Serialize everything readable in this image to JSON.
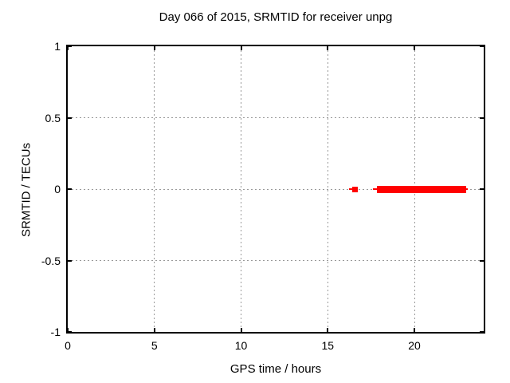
{
  "chart_data": {
    "type": "scatter",
    "title": "Day 066 of 2015, SRMTID for receiver unpg",
    "xlabel": "GPS time / hours",
    "ylabel": "SRMTID / TECUs",
    "xlim": [
      0,
      24
    ],
    "ylim": [
      -1,
      1
    ],
    "xticks": {
      "values": [
        0,
        5,
        10,
        15,
        20
      ],
      "labels": [
        "0",
        "5",
        "10",
        "15",
        "20"
      ]
    },
    "yticks": {
      "values": [
        1,
        0.5,
        0,
        -0.5,
        -1
      ],
      "labels": [
        "1",
        "0.5",
        "0",
        "-0.5",
        "-1"
      ]
    },
    "grid": true,
    "grid_color": "#999999",
    "border_color": "#000000",
    "background_color": "#ffffff",
    "marker_color": "#ff0000",
    "legend": "none",
    "series": [
      {
        "name": "SRMTID",
        "y_value": 0,
        "description": "All points lie on y = 0 TECUs; one isolated point near 16.5 h and a dense continuous run from about 17.8 h to 23.0 h",
        "coverage_hours": [
          [
            16.2,
            16.7
          ],
          [
            17.6,
            23.1
          ]
        ],
        "segments": [
          {
            "kind": "thin",
            "x1": 16.24,
            "x2": 16.4,
            "y": 0,
            "size": 2
          },
          {
            "kind": "point",
            "x1": 16.4,
            "x2": 16.72,
            "y": 0,
            "size": 7
          },
          {
            "kind": "thin",
            "x1": 17.63,
            "x2": 17.84,
            "y": 0,
            "size": 2
          },
          {
            "kind": "run",
            "x1": 17.84,
            "x2": 22.99,
            "y": 0,
            "size": 9
          },
          {
            "kind": "thin",
            "x1": 22.99,
            "x2": 23.1,
            "y": 0,
            "size": 2
          }
        ]
      }
    ]
  }
}
